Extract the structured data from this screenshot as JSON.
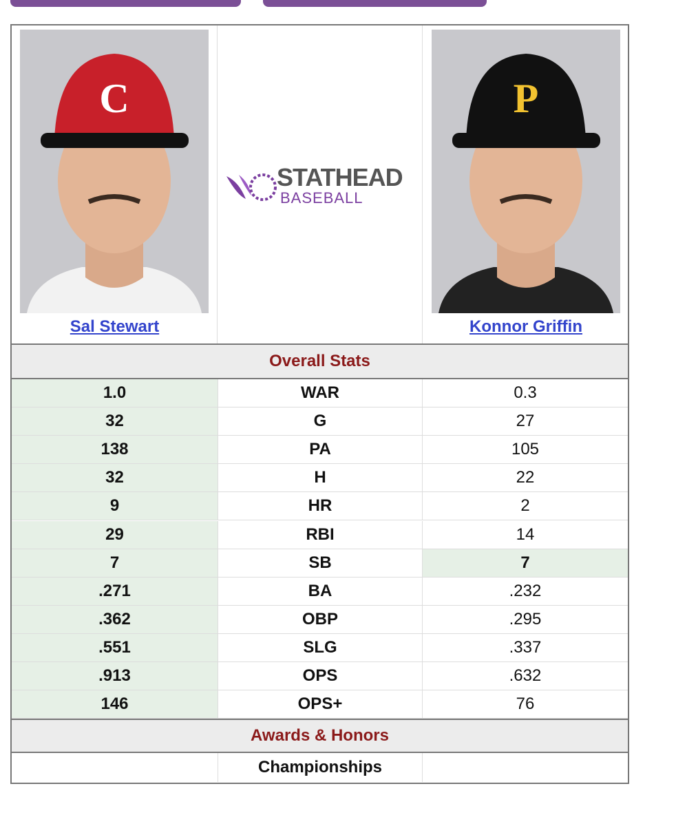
{
  "players": [
    {
      "name": "Sal Stewart"
    },
    {
      "name": "Konnor Griffin"
    }
  ],
  "logo": {
    "line1": "STATHEAD",
    "line2": "BASEBALL"
  },
  "overall": {
    "title": "Overall Stats",
    "rows": [
      {
        "stat": "WAR",
        "left": "1.0",
        "right": "0.3"
      },
      {
        "stat": "G",
        "left": "32",
        "right": "27"
      },
      {
        "stat": "PA",
        "left": "138",
        "right": "105"
      },
      {
        "stat": "H",
        "left": "32",
        "right": "22"
      },
      {
        "stat": "HR",
        "left": "9",
        "right": "2"
      },
      {
        "stat": "RBI",
        "left": "29",
        "right": "14"
      },
      {
        "stat": "SB",
        "left": "7",
        "right": "7"
      },
      {
        "stat": "BA",
        "left": ".271",
        "right": ".232"
      },
      {
        "stat": "OBP",
        "left": ".362",
        "right": ".295"
      },
      {
        "stat": "SLG",
        "left": ".551",
        "right": ".337"
      },
      {
        "stat": "OPS",
        "left": ".913",
        "right": ".632"
      },
      {
        "stat": "OPS+",
        "left": "146",
        "right": "76"
      }
    ]
  },
  "awards": {
    "title": "Awards & Honors",
    "rows": [
      {
        "stat": "Championships"
      }
    ]
  }
}
